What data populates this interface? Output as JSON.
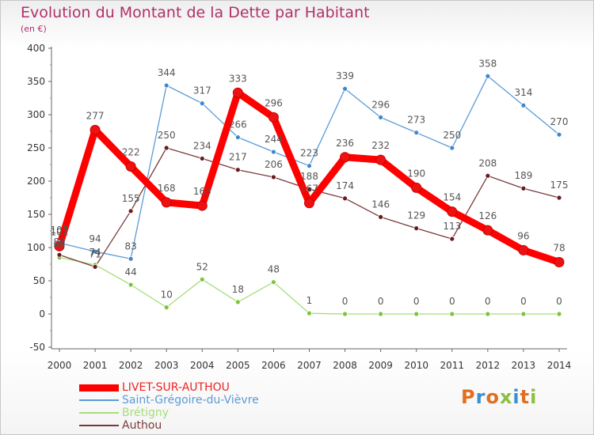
{
  "header": {
    "title": "Evolution du Montant de la Dette par Habitant",
    "unit": "(en €)"
  },
  "colors": {
    "title": "#b0306a",
    "axis": "#666666",
    "text": "#555555"
  },
  "brand": {
    "letters": [
      "P",
      "r",
      "o",
      "x",
      "i",
      "t",
      "i"
    ],
    "letter_colors": [
      "#e07020",
      "#3c8fd0",
      "#e07020",
      "#8ac040",
      "#3c8fd0",
      "#e07020",
      "#8ac040"
    ]
  },
  "chart_data": {
    "type": "line",
    "title": "Evolution du Montant de la Dette par Habitant",
    "ylabel": "(en €)",
    "xlabel": "",
    "x": [
      "2000",
      "2001",
      "2002",
      "2003",
      "2004",
      "2005",
      "2006",
      "2007",
      "2008",
      "2009",
      "2010",
      "2011",
      "2012",
      "2013",
      "2014"
    ],
    "ylim": [
      -50,
      400
    ],
    "yticks": [
      -50,
      0,
      50,
      100,
      150,
      200,
      250,
      300,
      350,
      400
    ],
    "grid": false,
    "legend_position": "bottom-left",
    "series": [
      {
        "name": "LIVET-SUR-AUTHOU",
        "color": "#ff0000",
        "point_color": "#ee1111",
        "values": [
          102,
          277,
          222,
          168,
          163,
          333,
          296,
          167,
          236,
          232,
          190,
          154,
          126,
          96,
          78
        ],
        "labels": [
          "102",
          "277",
          "222",
          "168",
          "163",
          "333",
          "296",
          "167",
          "236",
          "232",
          "190",
          "154",
          "126",
          "96",
          "78"
        ]
      },
      {
        "name": "Saint-Grégoire-du-Vièvre",
        "color": "#5b9bd5",
        "point_color": "#3f86d0",
        "values": [
          107,
          94,
          83,
          344,
          317,
          266,
          244,
          223,
          339,
          296,
          273,
          250,
          358,
          314,
          270
        ],
        "labels": [
          "107",
          "94",
          "83",
          "344",
          "317",
          "266",
          "244",
          "223",
          "339",
          "296",
          "273",
          "250",
          "358",
          "314",
          "270"
        ]
      },
      {
        "name": "Brétigny",
        "color": "#a8dc7a",
        "point_color": "#7cc43a",
        "values": [
          85,
          74,
          44,
          10,
          52,
          18,
          48,
          1,
          0,
          0,
          0,
          0,
          0,
          0,
          0
        ],
        "labels": [
          "85",
          "74",
          "44",
          "10",
          "52",
          "18",
          "48",
          "1",
          "0",
          "0",
          "0",
          "0",
          "0",
          "0",
          "0"
        ]
      },
      {
        "name": "Authou",
        "color": "#7a3a3a",
        "point_color": "#6a1a1a",
        "values": [
          89,
          71,
          155,
          250,
          234,
          217,
          206,
          188,
          174,
          146,
          129,
          113,
          208,
          189,
          175
        ],
        "labels": [
          "89",
          "71",
          "155",
          "250",
          "234",
          "217",
          "206",
          "188",
          "174",
          "146",
          "129",
          "113",
          "208",
          "189",
          "175"
        ]
      }
    ]
  }
}
